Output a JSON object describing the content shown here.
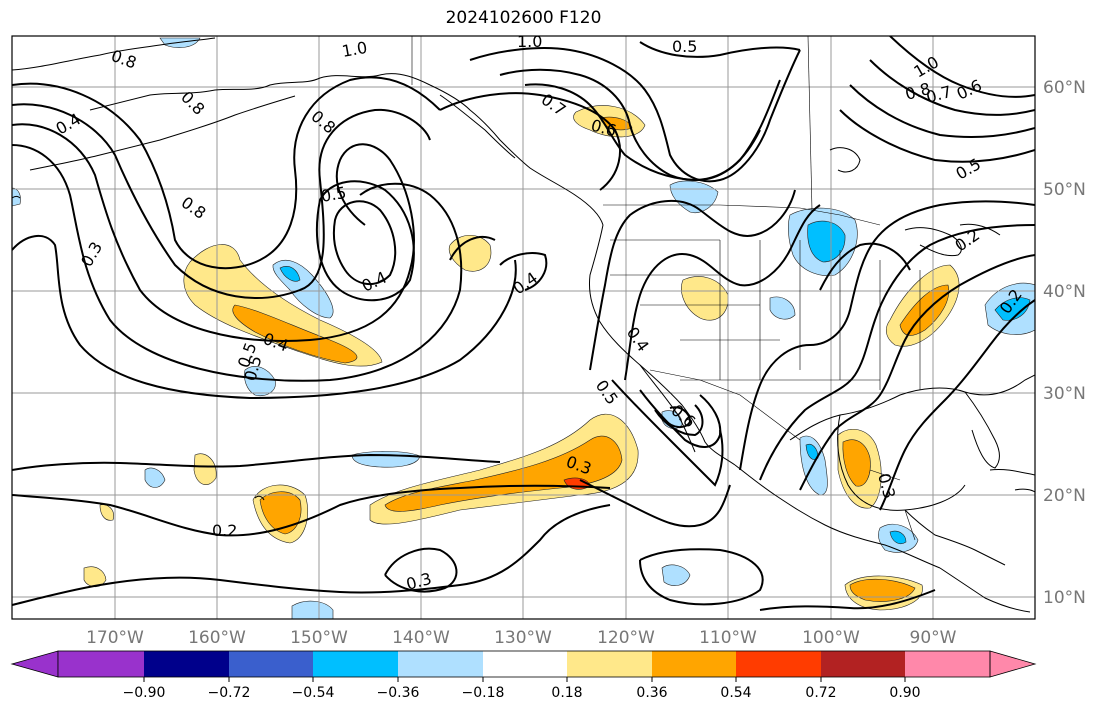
{
  "map": {
    "title": "2024102600 F120",
    "lon_ticks": [
      "170°W",
      "160°W",
      "150°W",
      "140°W",
      "130°W",
      "120°W",
      "110°W",
      "100°W",
      "90°W"
    ],
    "lat_ticks": [
      "60°N",
      "50°N",
      "40°N",
      "30°N",
      "20°N",
      "10°N"
    ],
    "contour_labels": [
      "0.8",
      "1.0",
      "1.0",
      "0.5",
      "0.8",
      "1.0",
      "0.8",
      "0.7",
      "0.6",
      "0.4",
      "0.8",
      "0.7",
      "0.6",
      "0.8",
      "0.5",
      "0.5",
      "0.3",
      "0.4",
      "0.4",
      "0.4",
      "0.5",
      "0.5",
      "0.4",
      "0.5",
      "0.6",
      "0.3",
      "0.2",
      "0.3",
      "0.3",
      "0.2",
      "0.2"
    ]
  },
  "colorbar": {
    "tick_labels": [
      "−0.90",
      "−0.72",
      "−0.54",
      "−0.36",
      "−0.18",
      "0.18",
      "0.36",
      "0.54",
      "0.72",
      "0.90"
    ],
    "colors": [
      "#9932cc",
      "#00008b",
      "#3a5fcd",
      "#00bfff",
      "#afe0ff",
      "#ffffff",
      "#ffe88a",
      "#ffa500",
      "#ff3c00",
      "#b22222",
      "#ff88aa"
    ]
  }
}
